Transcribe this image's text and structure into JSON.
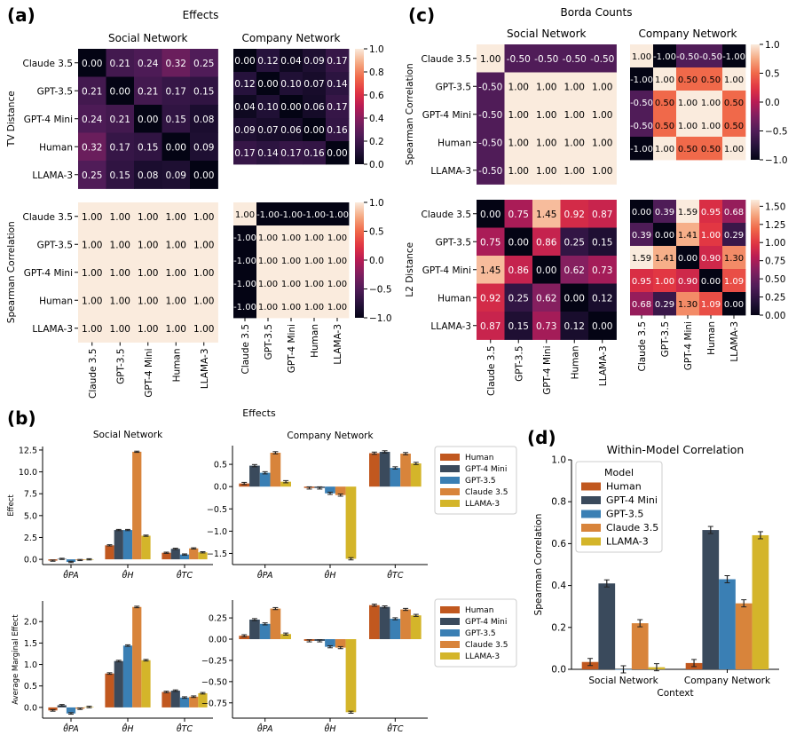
{
  "panel_labels": {
    "a": "(a)",
    "b": "(b)",
    "c": "(c)",
    "d": "(d)"
  },
  "titles": {
    "a": "Effects",
    "b": "Effects",
    "c": "Borda Counts",
    "social": "Social Network",
    "company": "Company Network",
    "d": "Within-Model Correlation"
  },
  "models": [
    "Claude 3.5",
    "GPT-3.5",
    "GPT-4 Mini",
    "Human",
    "LLAMA-3"
  ],
  "colors": {
    "Human": "#c1581f",
    "GPT-4 Mini": "#3a4a5c",
    "GPT-3.5": "#3a7fb4",
    "Claude 3.5": "#d8843b",
    "LLAMA-3": "#d4b52a"
  },
  "chart_data": [
    {
      "id": "a_tv_social",
      "type": "heatmap",
      "ylabel": "TV Distance",
      "title": "Social Network",
      "labels": [
        "Claude 3.5",
        "GPT-3.5",
        "GPT-4 Mini",
        "Human",
        "LLAMA-3"
      ],
      "vmin": 0,
      "vmax": 1,
      "matrix": [
        [
          0.0,
          0.21,
          0.24,
          0.32,
          0.25
        ],
        [
          0.21,
          0.0,
          0.21,
          0.17,
          0.15
        ],
        [
          0.24,
          0.21,
          0.0,
          0.15,
          0.08
        ],
        [
          0.32,
          0.17,
          0.15,
          0.0,
          0.09
        ],
        [
          0.25,
          0.15,
          0.08,
          0.09,
          0.0
        ]
      ]
    },
    {
      "id": "a_tv_company",
      "type": "heatmap",
      "title": "Company Network",
      "labels": [
        "Claude 3.5",
        "GPT-3.5",
        "GPT-4 Mini",
        "Human",
        "LLAMA-3"
      ],
      "vmin": 0,
      "vmax": 1,
      "colorbar_ticks": [
        "0.0",
        "0.2",
        "0.4",
        "0.6",
        "0.8",
        "1.0"
      ],
      "matrix": [
        [
          0.0,
          0.12,
          0.04,
          0.09,
          0.17
        ],
        [
          0.12,
          0.0,
          0.1,
          0.07,
          0.14
        ],
        [
          0.04,
          0.1,
          0.0,
          0.06,
          0.17
        ],
        [
          0.09,
          0.07,
          0.06,
          0.0,
          0.16
        ],
        [
          0.17,
          0.14,
          0.17,
          0.16,
          0.0
        ]
      ]
    },
    {
      "id": "a_sp_social",
      "type": "heatmap",
      "ylabel": "Spearman Correlation",
      "labels": [
        "Claude 3.5",
        "GPT-3.5",
        "GPT-4 Mini",
        "Human",
        "LLAMA-3"
      ],
      "vmin": -1,
      "vmax": 1,
      "matrix": [
        [
          1,
          1,
          1,
          1,
          1
        ],
        [
          1,
          1,
          1,
          1,
          1
        ],
        [
          1,
          1,
          1,
          1,
          1
        ],
        [
          1,
          1,
          1,
          1,
          1
        ],
        [
          1,
          1,
          1,
          1,
          1
        ]
      ]
    },
    {
      "id": "a_sp_company",
      "type": "heatmap",
      "labels": [
        "Claude 3.5",
        "GPT-3.5",
        "GPT-4 Mini",
        "Human",
        "LLAMA-3"
      ],
      "vmin": -1,
      "vmax": 1,
      "colorbar_ticks": [
        "−1.0",
        "−0.5",
        "0.0",
        "0.5",
        "1.0"
      ],
      "matrix": [
        [
          1,
          -1,
          -1,
          -1,
          -1
        ],
        [
          -1,
          1,
          1,
          1,
          1
        ],
        [
          -1,
          1,
          1,
          1,
          1
        ],
        [
          -1,
          1,
          1,
          1,
          1
        ],
        [
          -1,
          1,
          1,
          1,
          1
        ]
      ]
    },
    {
      "id": "c_sp_social",
      "type": "heatmap",
      "ylabel": "Spearman Correlation",
      "title": "Social Network",
      "labels": [
        "Claude 3.5",
        "GPT-3.5",
        "GPT-4 Mini",
        "Human",
        "LLAMA-3"
      ],
      "vmin": -1,
      "vmax": 1,
      "matrix": [
        [
          1.0,
          -0.5,
          -0.5,
          -0.5,
          -0.5
        ],
        [
          -0.5,
          1.0,
          1.0,
          1.0,
          1.0
        ],
        [
          -0.5,
          1.0,
          1.0,
          1.0,
          1.0
        ],
        [
          -0.5,
          1.0,
          1.0,
          1.0,
          1.0
        ],
        [
          -0.5,
          1.0,
          1.0,
          1.0,
          1.0
        ]
      ]
    },
    {
      "id": "c_sp_company",
      "type": "heatmap",
      "title": "Company Network",
      "labels": [
        "Claude 3.5",
        "GPT-3.5",
        "GPT-4 Mini",
        "Human",
        "LLAMA-3"
      ],
      "vmin": -1,
      "vmax": 1,
      "colorbar_ticks": [
        "−1.0",
        "−0.5",
        "0.0",
        "0.5",
        "1.0"
      ],
      "matrix": [
        [
          1.0,
          -1.0,
          -0.5,
          -0.5,
          -1.0
        ],
        [
          -1.0,
          1.0,
          0.5,
          0.5,
          1.0
        ],
        [
          -0.5,
          0.5,
          1.0,
          1.0,
          0.5
        ],
        [
          -0.5,
          0.5,
          1.0,
          1.0,
          0.5
        ],
        [
          -1.0,
          1.0,
          0.5,
          0.5,
          1.0
        ]
      ]
    },
    {
      "id": "c_l2_social",
      "type": "heatmap",
      "ylabel": "L2 Distance",
      "labels": [
        "Claude 3.5",
        "GPT-3.5",
        "GPT-4 Mini",
        "Human",
        "LLAMA-3"
      ],
      "vmin": 0,
      "vmax": 1.59,
      "matrix": [
        [
          0.0,
          0.75,
          1.45,
          0.92,
          0.87
        ],
        [
          0.75,
          0.0,
          0.86,
          0.25,
          0.15
        ],
        [
          1.45,
          0.86,
          0.0,
          0.62,
          0.73
        ],
        [
          0.92,
          0.25,
          0.62,
          0.0,
          0.12
        ],
        [
          0.87,
          0.15,
          0.73,
          0.12,
          0.0
        ]
      ]
    },
    {
      "id": "c_l2_company",
      "type": "heatmap",
      "labels": [
        "Claude 3.5",
        "GPT-3.5",
        "GPT-4 Mini",
        "Human",
        "LLAMA-3"
      ],
      "vmin": 0,
      "vmax": 1.59,
      "colorbar_ticks": [
        "0.00",
        "0.25",
        "0.50",
        "0.75",
        "1.00",
        "1.25",
        "1.50"
      ],
      "matrix": [
        [
          0.0,
          0.39,
          1.59,
          0.95,
          0.68
        ],
        [
          0.39,
          0.0,
          1.41,
          1.0,
          0.29
        ],
        [
          1.59,
          1.41,
          0.0,
          0.9,
          1.3
        ],
        [
          0.95,
          1.0,
          0.9,
          0.0,
          1.09
        ],
        [
          0.68,
          0.29,
          1.3,
          1.09,
          0.0
        ]
      ]
    },
    {
      "id": "b_eff_social",
      "type": "bar",
      "title": "Social Network",
      "ylabel": "Effect",
      "categories": [
        "θ̂PA",
        "θ̂H",
        "θ̂TC"
      ],
      "ylim": [
        -0.6,
        12.9
      ],
      "yticks": [
        "0.0",
        "2.5",
        "5.0",
        "7.5",
        "10.0",
        "12.5"
      ],
      "series": [
        {
          "name": "Human",
          "values": [
            -0.15,
            1.6,
            0.75
          ]
        },
        {
          "name": "GPT-4 Mini",
          "values": [
            0.05,
            3.35,
            1.2
          ]
        },
        {
          "name": "GPT-3.5",
          "values": [
            -0.3,
            3.35,
            0.55
          ]
        },
        {
          "name": "Claude 3.5",
          "values": [
            -0.08,
            12.3,
            1.25
          ]
        },
        {
          "name": "LLAMA-3",
          "values": [
            0.0,
            2.7,
            0.8
          ]
        }
      ]
    },
    {
      "id": "b_eff_company",
      "type": "bar",
      "title": "Company Network",
      "categories": [
        "θ̂PA",
        "θ̂H",
        "θ̂TC"
      ],
      "ylim": [
        -1.75,
        0.92
      ],
      "yticks": [
        "−1.5",
        "−1.0",
        "−0.5",
        "0.0",
        "0.5"
      ],
      "series": [
        {
          "name": "Human",
          "values": [
            0.07,
            -0.03,
            0.75
          ]
        },
        {
          "name": "GPT-4 Mini",
          "values": [
            0.47,
            -0.03,
            0.78
          ]
        },
        {
          "name": "GPT-3.5",
          "values": [
            0.31,
            -0.15,
            0.42
          ]
        },
        {
          "name": "Claude 3.5",
          "values": [
            0.76,
            -0.19,
            0.74
          ]
        },
        {
          "name": "LLAMA-3",
          "values": [
            0.11,
            -1.62,
            0.52
          ]
        }
      ],
      "legend": [
        "Human",
        "GPT-4 Mini",
        "GPT-3.5",
        "Claude 3.5",
        "LLAMA-3"
      ]
    },
    {
      "id": "b_ame_social",
      "type": "bar",
      "ylabel": "Average Marginal Effect",
      "categories": [
        "θ̂PA",
        "θ̂H",
        "θ̂TC"
      ],
      "ylim": [
        -0.25,
        2.48
      ],
      "yticks": [
        "0.0",
        "0.5",
        "1.0",
        "1.5",
        "2.0"
      ],
      "series": [
        {
          "name": "Human",
          "values": [
            -0.07,
            0.79,
            0.36
          ]
        },
        {
          "name": "GPT-4 Mini",
          "values": [
            0.05,
            1.08,
            0.39
          ]
        },
        {
          "name": "GPT-3.5",
          "values": [
            -0.14,
            1.44,
            0.23
          ]
        },
        {
          "name": "Claude 3.5",
          "values": [
            -0.03,
            2.34,
            0.25
          ]
        },
        {
          "name": "LLAMA-3",
          "values": [
            0.01,
            1.1,
            0.33
          ]
        }
      ]
    },
    {
      "id": "b_ame_company",
      "type": "bar",
      "categories": [
        "θ̂PA",
        "θ̂H",
        "θ̂TC"
      ],
      "ylim": [
        -0.93,
        0.46
      ],
      "yticks": [
        "−0.75",
        "−0.50",
        "−0.25",
        "0.00",
        "0.25"
      ],
      "series": [
        {
          "name": "Human",
          "values": [
            0.04,
            -0.02,
            0.4
          ]
        },
        {
          "name": "GPT-4 Mini",
          "values": [
            0.23,
            -0.02,
            0.38
          ]
        },
        {
          "name": "GPT-3.5",
          "values": [
            0.18,
            -0.09,
            0.24
          ]
        },
        {
          "name": "Claude 3.5",
          "values": [
            0.36,
            -0.1,
            0.35
          ]
        },
        {
          "name": "LLAMA-3",
          "values": [
            0.06,
            -0.86,
            0.28
          ]
        }
      ],
      "legend": [
        "Human",
        "GPT-4 Mini",
        "GPT-3.5",
        "Claude 3.5",
        "LLAMA-3"
      ]
    },
    {
      "id": "d_within",
      "type": "bar",
      "title": "Within-Model Correlation",
      "xlabel": "Context",
      "ylabel": "Spearman Correlation",
      "categories": [
        "Social Network",
        "Company Network"
      ],
      "ylim": [
        0,
        1.0
      ],
      "yticks": [
        "0.0",
        "0.2",
        "0.4",
        "0.6",
        "0.8",
        "1.0"
      ],
      "legend_title": "Model",
      "series": [
        {
          "name": "Human",
          "values": [
            0.035,
            0.03
          ]
        },
        {
          "name": "GPT-4 Mini",
          "values": [
            0.41,
            0.665
          ]
        },
        {
          "name": "GPT-3.5",
          "values": [
            0.0,
            0.43
          ]
        },
        {
          "name": "Claude 3.5",
          "values": [
            0.22,
            0.315
          ]
        },
        {
          "name": "LLAMA-3",
          "values": [
            0.01,
            0.64
          ]
        }
      ]
    }
  ]
}
